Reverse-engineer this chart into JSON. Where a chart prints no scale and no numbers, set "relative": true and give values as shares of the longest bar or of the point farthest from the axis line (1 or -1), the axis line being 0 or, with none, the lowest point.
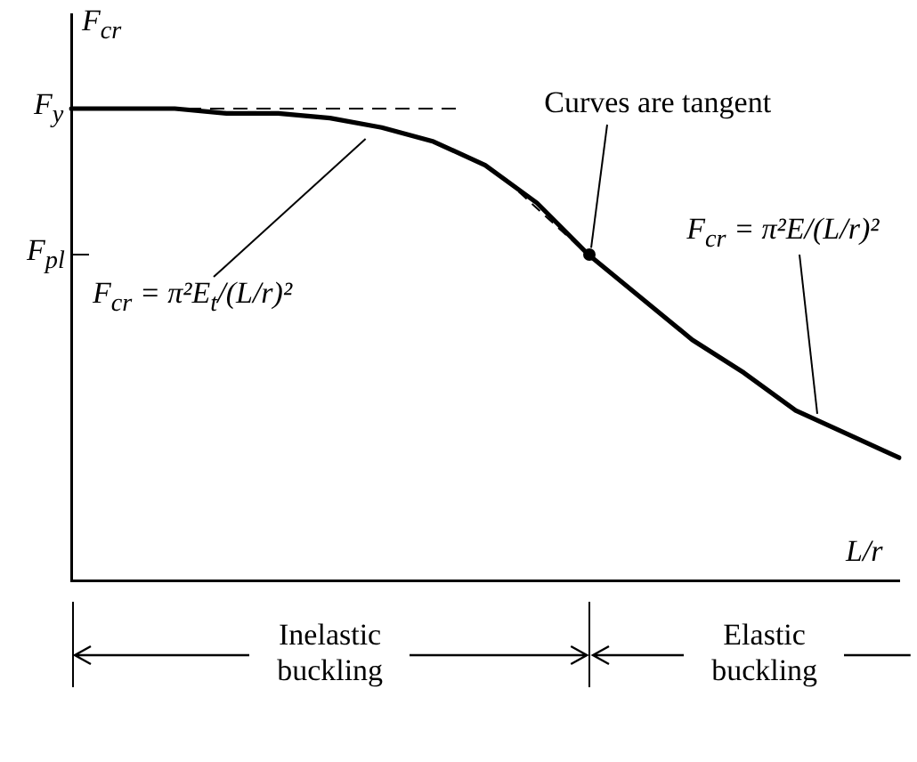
{
  "chart_data": {
    "type": "line",
    "relative": true,
    "ylabel": "F$_{cr}$",
    "xlabel": "L/r",
    "categories": [
      null,
      null,
      null,
      null,
      null,
      null,
      null,
      null,
      null,
      null,
      null,
      null,
      null,
      null,
      null,
      null,
      null
    ],
    "series": [
      {
        "color": "#000000",
        "values": [
          1,
          1,
          1,
          0.99,
          0.99,
          0.98,
          0.96,
          0.93,
          0.88,
          0.8,
          0.69,
          0.6,
          0.51,
          0.44,
          0.36,
          0.31,
          0.26
        ]
      }
    ],
    "ref_lines": [
      {
        "axis": "y",
        "value": 1,
        "label": "F$_{y}$",
        "line_style": "dashed"
      },
      {
        "axis": "y",
        "value": 0.69,
        "label": "F$_{pl}$"
      }
    ],
    "annotations": [
      "Curves are tangent",
      "F$_{cr}$ = π²E$_{t}$/(L/r)²",
      "F$_{cr}$ = π²E/(L/r)²",
      "Inelastic buckling",
      "Elastic buckling"
    ],
    "legend": false,
    "grid": false
  }
}
